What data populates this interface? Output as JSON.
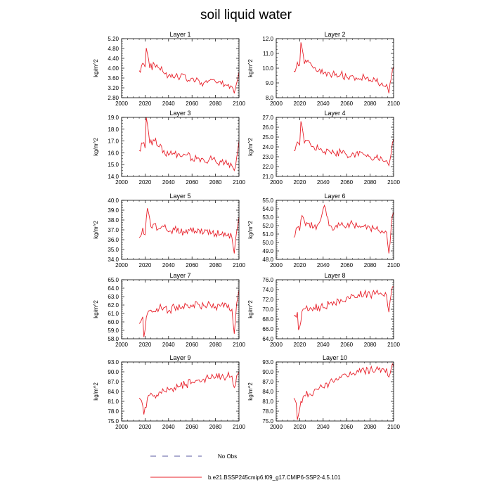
{
  "page": {
    "title": "soil liquid water"
  },
  "legend": {
    "obs_label": "No Obs",
    "obs_color": "#5a5aa0",
    "model_label": "b.e21.BSSP245cmip6.f09_g17.CMIP6-SSP2-4.5.101",
    "model_color": "#e8202a"
  },
  "chart_data": [
    {
      "type": "line",
      "title": "Layer 1",
      "ylabel": "kg/m^2",
      "xlim": [
        2000,
        2100
      ],
      "ylim": [
        2.8,
        5.2
      ],
      "xticks": [
        "2000",
        "2020",
        "2040",
        "2060",
        "2080",
        "2100"
      ],
      "yticks": [
        "2.80",
        "3.20",
        "3.60",
        "4.00",
        "4.40",
        "4.80",
        "5.20"
      ],
      "x_start": 2015,
      "x_end": 2100,
      "anchors": [
        [
          2015,
          3.9
        ],
        [
          2018,
          4.2
        ],
        [
          2020,
          4.05
        ],
        [
          2021,
          4.82
        ],
        [
          2024,
          4.0
        ],
        [
          2028,
          4.15
        ],
        [
          2032,
          4.0
        ],
        [
          2036,
          3.8
        ],
        [
          2040,
          3.7
        ],
        [
          2045,
          3.6
        ],
        [
          2050,
          3.65
        ],
        [
          2055,
          3.55
        ],
        [
          2060,
          3.6
        ],
        [
          2065,
          3.55
        ],
        [
          2070,
          3.4
        ],
        [
          2075,
          3.5
        ],
        [
          2080,
          3.45
        ],
        [
          2085,
          3.35
        ],
        [
          2090,
          3.3
        ],
        [
          2094,
          3.25
        ],
        [
          2096,
          2.98
        ],
        [
          2098,
          3.4
        ],
        [
          2100,
          3.85
        ]
      ]
    },
    {
      "type": "line",
      "title": "Layer 2",
      "ylabel": "kg/m^2",
      "xlim": [
        2000,
        2100
      ],
      "ylim": [
        8.0,
        12.0
      ],
      "xticks": [
        "2000",
        "2020",
        "2040",
        "2060",
        "2080",
        "2100"
      ],
      "yticks": [
        "8.0",
        "9.0",
        "10.0",
        "11.0",
        "12.0"
      ],
      "x_start": 2015,
      "x_end": 2100,
      "anchors": [
        [
          2015,
          9.8
        ],
        [
          2018,
          10.4
        ],
        [
          2020,
          10.2
        ],
        [
          2021,
          11.75
        ],
        [
          2024,
          10.3
        ],
        [
          2028,
          10.4
        ],
        [
          2032,
          10.0
        ],
        [
          2036,
          9.8
        ],
        [
          2040,
          9.6
        ],
        [
          2045,
          9.7
        ],
        [
          2050,
          9.5
        ],
        [
          2055,
          9.6
        ],
        [
          2060,
          9.4
        ],
        [
          2065,
          9.5
        ],
        [
          2070,
          9.3
        ],
        [
          2075,
          9.4
        ],
        [
          2080,
          9.2
        ],
        [
          2085,
          9.1
        ],
        [
          2090,
          9.0
        ],
        [
          2094,
          8.9
        ],
        [
          2096,
          8.3
        ],
        [
          2098,
          9.3
        ],
        [
          2100,
          10.1
        ]
      ]
    },
    {
      "type": "line",
      "title": "Layer 3",
      "ylabel": "kg/m^2",
      "xlim": [
        2000,
        2100
      ],
      "ylim": [
        14.0,
        19.0
      ],
      "xticks": [
        "2000",
        "2020",
        "2040",
        "2060",
        "2080",
        "2100"
      ],
      "yticks": [
        "14.0",
        "15.0",
        "16.0",
        "17.0",
        "18.0",
        "19.0"
      ],
      "x_start": 2015,
      "x_end": 2100,
      "anchors": [
        [
          2015,
          16.2
        ],
        [
          2018,
          16.8
        ],
        [
          2020,
          16.4
        ],
        [
          2021,
          19.0
        ],
        [
          2024,
          16.8
        ],
        [
          2028,
          17.0
        ],
        [
          2032,
          16.5
        ],
        [
          2036,
          16.2
        ],
        [
          2040,
          15.8
        ],
        [
          2045,
          15.9
        ],
        [
          2050,
          15.7
        ],
        [
          2055,
          15.8
        ],
        [
          2060,
          15.5
        ],
        [
          2065,
          15.6
        ],
        [
          2070,
          15.4
        ],
        [
          2075,
          15.5
        ],
        [
          2080,
          15.3
        ],
        [
          2085,
          15.2
        ],
        [
          2090,
          15.0
        ],
        [
          2094,
          14.9
        ],
        [
          2096,
          14.5
        ],
        [
          2098,
          15.6
        ],
        [
          2100,
          17.0
        ]
      ]
    },
    {
      "type": "line",
      "title": "Layer 4",
      "ylabel": "kg/m^2",
      "xlim": [
        2000,
        2100
      ],
      "ylim": [
        21.0,
        27.0
      ],
      "xticks": [
        "2000",
        "2020",
        "2040",
        "2060",
        "2080",
        "2100"
      ],
      "yticks": [
        "21.0",
        "22.0",
        "23.0",
        "24.0",
        "25.0",
        "26.0",
        "27.0"
      ],
      "x_start": 2015,
      "x_end": 2100,
      "anchors": [
        [
          2015,
          23.6
        ],
        [
          2018,
          24.5
        ],
        [
          2020,
          24.2
        ],
        [
          2021,
          26.6
        ],
        [
          2024,
          24.4
        ],
        [
          2028,
          24.6
        ],
        [
          2032,
          24.0
        ],
        [
          2036,
          23.8
        ],
        [
          2040,
          23.4
        ],
        [
          2045,
          23.6
        ],
        [
          2050,
          23.3
        ],
        [
          2055,
          23.5
        ],
        [
          2060,
          23.2
        ],
        [
          2065,
          23.4
        ],
        [
          2070,
          23.1
        ],
        [
          2075,
          23.2
        ],
        [
          2080,
          23.0
        ],
        [
          2085,
          22.9
        ],
        [
          2090,
          22.8
        ],
        [
          2094,
          22.6
        ],
        [
          2096,
          22.1
        ],
        [
          2098,
          23.4
        ],
        [
          2100,
          24.8
        ]
      ]
    },
    {
      "type": "line",
      "title": "Layer 5",
      "ylabel": "kg/m^2",
      "xlim": [
        2000,
        2100
      ],
      "ylim": [
        34.0,
        40.0
      ],
      "xticks": [
        "2000",
        "2020",
        "2040",
        "2060",
        "2080",
        "2100"
      ],
      "yticks": [
        "34.0",
        "35.0",
        "36.0",
        "37.0",
        "38.0",
        "39.0",
        "40.0"
      ],
      "x_start": 2015,
      "x_end": 2100,
      "anchors": [
        [
          2015,
          36.2
        ],
        [
          2018,
          37.2
        ],
        [
          2020,
          36.5
        ],
        [
          2022,
          39.2
        ],
        [
          2025,
          37.3
        ],
        [
          2028,
          37.6
        ],
        [
          2032,
          37.1
        ],
        [
          2036,
          37.3
        ],
        [
          2040,
          36.8
        ],
        [
          2045,
          37.0
        ],
        [
          2050,
          36.7
        ],
        [
          2055,
          37.0
        ],
        [
          2060,
          36.8
        ],
        [
          2065,
          37.1
        ],
        [
          2070,
          36.7
        ],
        [
          2075,
          37.0
        ],
        [
          2080,
          36.6
        ],
        [
          2085,
          36.5
        ],
        [
          2090,
          36.4
        ],
        [
          2094,
          36.2
        ],
        [
          2096,
          34.6
        ],
        [
          2098,
          36.8
        ],
        [
          2100,
          38.3
        ]
      ]
    },
    {
      "type": "line",
      "title": "Layer 6",
      "ylabel": "kg/m^2",
      "xlim": [
        2000,
        2100
      ],
      "ylim": [
        48.0,
        55.0
      ],
      "xticks": [
        "2000",
        "2020",
        "2040",
        "2060",
        "2080",
        "2100"
      ],
      "yticks": [
        "48.0",
        "49.0",
        "50.0",
        "51.0",
        "52.0",
        "53.0",
        "54.0",
        "55.0"
      ],
      "x_start": 2015,
      "x_end": 2100,
      "anchors": [
        [
          2015,
          50.6
        ],
        [
          2018,
          51.8
        ],
        [
          2020,
          51.4
        ],
        [
          2022,
          53.2
        ],
        [
          2025,
          52.0
        ],
        [
          2028,
          52.3
        ],
        [
          2032,
          51.8
        ],
        [
          2036,
          52.2
        ],
        [
          2041,
          54.4
        ],
        [
          2045,
          52.0
        ],
        [
          2050,
          51.8
        ],
        [
          2055,
          52.1
        ],
        [
          2060,
          51.9
        ],
        [
          2065,
          52.2
        ],
        [
          2070,
          51.8
        ],
        [
          2075,
          52.0
        ],
        [
          2080,
          51.7
        ],
        [
          2085,
          51.6
        ],
        [
          2090,
          51.4
        ],
        [
          2094,
          51.2
        ],
        [
          2096,
          48.7
        ],
        [
          2098,
          52.0
        ],
        [
          2100,
          53.6
        ]
      ]
    },
    {
      "type": "line",
      "title": "Layer 7",
      "ylabel": "kg/m^2",
      "xlim": [
        2000,
        2100
      ],
      "ylim": [
        58.0,
        65.0
      ],
      "xticks": [
        "2000",
        "2020",
        "2040",
        "2060",
        "2080",
        "2100"
      ],
      "yticks": [
        "58.0",
        "59.0",
        "60.0",
        "61.0",
        "62.0",
        "63.0",
        "64.0",
        "65.0"
      ],
      "x_start": 2015,
      "x_end": 2100,
      "anchors": [
        [
          2015,
          59.8
        ],
        [
          2018,
          60.6
        ],
        [
          2019,
          58.2
        ],
        [
          2022,
          61.0
        ],
        [
          2025,
          61.4
        ],
        [
          2028,
          61.2
        ],
        [
          2032,
          61.6
        ],
        [
          2036,
          61.7
        ],
        [
          2040,
          61.3
        ],
        [
          2045,
          61.8
        ],
        [
          2050,
          61.6
        ],
        [
          2055,
          62.0
        ],
        [
          2060,
          61.8
        ],
        [
          2065,
          62.1
        ],
        [
          2070,
          61.9
        ],
        [
          2075,
          62.2
        ],
        [
          2080,
          61.8
        ],
        [
          2085,
          62.0
        ],
        [
          2090,
          61.7
        ],
        [
          2094,
          61.5
        ],
        [
          2096,
          58.6
        ],
        [
          2098,
          62.2
        ],
        [
          2100,
          63.8
        ]
      ]
    },
    {
      "type": "line",
      "title": "Layer 8",
      "ylabel": "kg/m^2",
      "xlim": [
        2000,
        2100
      ],
      "ylim": [
        64.0,
        76.0
      ],
      "xticks": [
        "2000",
        "2020",
        "2040",
        "2060",
        "2080",
        "2100"
      ],
      "yticks": [
        "64.0",
        "66.0",
        "68.0",
        "70.0",
        "72.0",
        "74.0",
        "76.0"
      ],
      "x_start": 2015,
      "x_end": 2100,
      "anchors": [
        [
          2015,
          68.6
        ],
        [
          2018,
          69.4
        ],
        [
          2019,
          65.8
        ],
        [
          2022,
          69.6
        ],
        [
          2025,
          70.2
        ],
        [
          2028,
          69.8
        ],
        [
          2032,
          70.4
        ],
        [
          2036,
          70.6
        ],
        [
          2040,
          70.3
        ],
        [
          2045,
          71.0
        ],
        [
          2050,
          71.2
        ],
        [
          2055,
          72.0
        ],
        [
          2060,
          72.4
        ],
        [
          2065,
          72.8
        ],
        [
          2070,
          73.0
        ],
        [
          2075,
          73.2
        ],
        [
          2080,
          73.0
        ],
        [
          2085,
          73.4
        ],
        [
          2090,
          73.0
        ],
        [
          2094,
          72.8
        ],
        [
          2096,
          69.4
        ],
        [
          2098,
          73.2
        ],
        [
          2100,
          74.6
        ]
      ]
    },
    {
      "type": "line",
      "title": "Layer 9",
      "ylabel": "kg/m^2",
      "xlim": [
        2000,
        2100
      ],
      "ylim": [
        75.0,
        93.0
      ],
      "xticks": [
        "2000",
        "2020",
        "2040",
        "2060",
        "2080",
        "2100"
      ],
      "yticks": [
        "75.0",
        "78.0",
        "81.0",
        "84.0",
        "87.0",
        "90.0",
        "93.0"
      ],
      "x_start": 2015,
      "x_end": 2100,
      "anchors": [
        [
          2015,
          82.0
        ],
        [
          2017,
          81.2
        ],
        [
          2019,
          77.0
        ],
        [
          2022,
          82.0
        ],
        [
          2025,
          83.5
        ],
        [
          2028,
          82.8
        ],
        [
          2032,
          83.8
        ],
        [
          2036,
          84.2
        ],
        [
          2040,
          84.6
        ],
        [
          2045,
          85.2
        ],
        [
          2050,
          85.6
        ],
        [
          2055,
          86.2
        ],
        [
          2060,
          86.8
        ],
        [
          2065,
          87.4
        ],
        [
          2070,
          87.8
        ],
        [
          2075,
          88.0
        ],
        [
          2080,
          88.2
        ],
        [
          2085,
          88.4
        ],
        [
          2090,
          88.6
        ],
        [
          2094,
          88.7
        ],
        [
          2096,
          85.2
        ],
        [
          2098,
          88.8
        ],
        [
          2100,
          90.0
        ]
      ]
    },
    {
      "type": "line",
      "title": "Layer 10",
      "ylabel": "kg/m^2",
      "xlim": [
        2000,
        2100
      ],
      "ylim": [
        75.0,
        93.0
      ],
      "xticks": [
        "2000",
        "2020",
        "2040",
        "2060",
        "2080",
        "2100"
      ],
      "yticks": [
        "75.0",
        "78.0",
        "81.0",
        "84.0",
        "87.0",
        "90.0",
        "93.0"
      ],
      "x_start": 2015,
      "x_end": 2100,
      "anchors": [
        [
          2015,
          82.0
        ],
        [
          2017,
          80.5
        ],
        [
          2018,
          75.4
        ],
        [
          2021,
          81.0
        ],
        [
          2024,
          82.8
        ],
        [
          2028,
          83.2
        ],
        [
          2032,
          84.0
        ],
        [
          2036,
          84.6
        ],
        [
          2040,
          85.2
        ],
        [
          2045,
          86.4
        ],
        [
          2050,
          87.4
        ],
        [
          2055,
          88.2
        ],
        [
          2060,
          88.8
        ],
        [
          2065,
          89.4
        ],
        [
          2070,
          89.9
        ],
        [
          2075,
          90.3
        ],
        [
          2080,
          90.6
        ],
        [
          2085,
          90.8
        ],
        [
          2090,
          90.9
        ],
        [
          2094,
          91.0
        ],
        [
          2096,
          88.4
        ],
        [
          2098,
          91.1
        ],
        [
          2100,
          91.6
        ]
      ]
    }
  ]
}
